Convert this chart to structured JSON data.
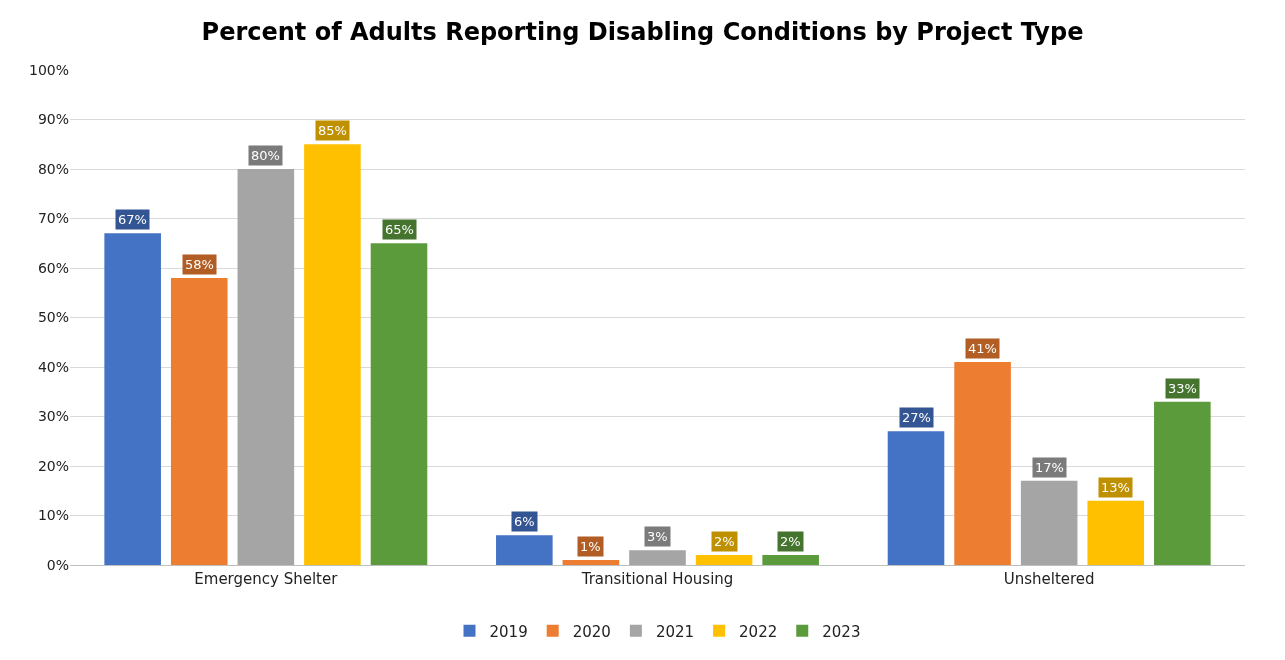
{
  "chart_data": {
    "type": "bar",
    "title": "Percent of Adults Reporting Disabling Conditions by Project Type",
    "categories": [
      "Emergency Shelter",
      "Transitional Housing",
      "Unsheltered"
    ],
    "series": [
      {
        "name": "2019",
        "color": "#4472c4",
        "values": [
          67,
          6,
          27
        ],
        "value_labels": [
          "67%",
          "6%",
          "27%"
        ]
      },
      {
        "name": "2020",
        "color": "#ed7d31",
        "values": [
          58,
          1,
          41
        ],
        "value_labels": [
          "58%",
          "1%",
          "41%"
        ]
      },
      {
        "name": "2021",
        "color": "#a5a5a5",
        "values": [
          80,
          3,
          17
        ],
        "value_labels": [
          "80%",
          "3%",
          "17%"
        ]
      },
      {
        "name": "2022",
        "color": "#ffc000",
        "values": [
          85,
          2,
          13
        ],
        "value_labels": [
          "85%",
          "2%",
          "13%"
        ]
      },
      {
        "name": "2023",
        "color": "#5b9b3c",
        "values": [
          65,
          2,
          33
        ],
        "value_labels": [
          "65%",
          "2%",
          "33%"
        ]
      }
    ],
    "ylim": [
      0,
      100
    ],
    "yticks": [
      {
        "value": 0,
        "label": "0%"
      },
      {
        "value": 10,
        "label": "10%"
      },
      {
        "value": 20,
        "label": "20%"
      },
      {
        "value": 30,
        "label": "30%"
      },
      {
        "value": 40,
        "label": "40%"
      },
      {
        "value": 50,
        "label": "50%"
      },
      {
        "value": 60,
        "label": "60%"
      },
      {
        "value": 70,
        "label": "70%"
      },
      {
        "value": 80,
        "label": "80%"
      },
      {
        "value": 90,
        "label": "90%"
      },
      {
        "value": 100,
        "label": "100%"
      }
    ],
    "grid": "y",
    "legend": "bottom"
  }
}
